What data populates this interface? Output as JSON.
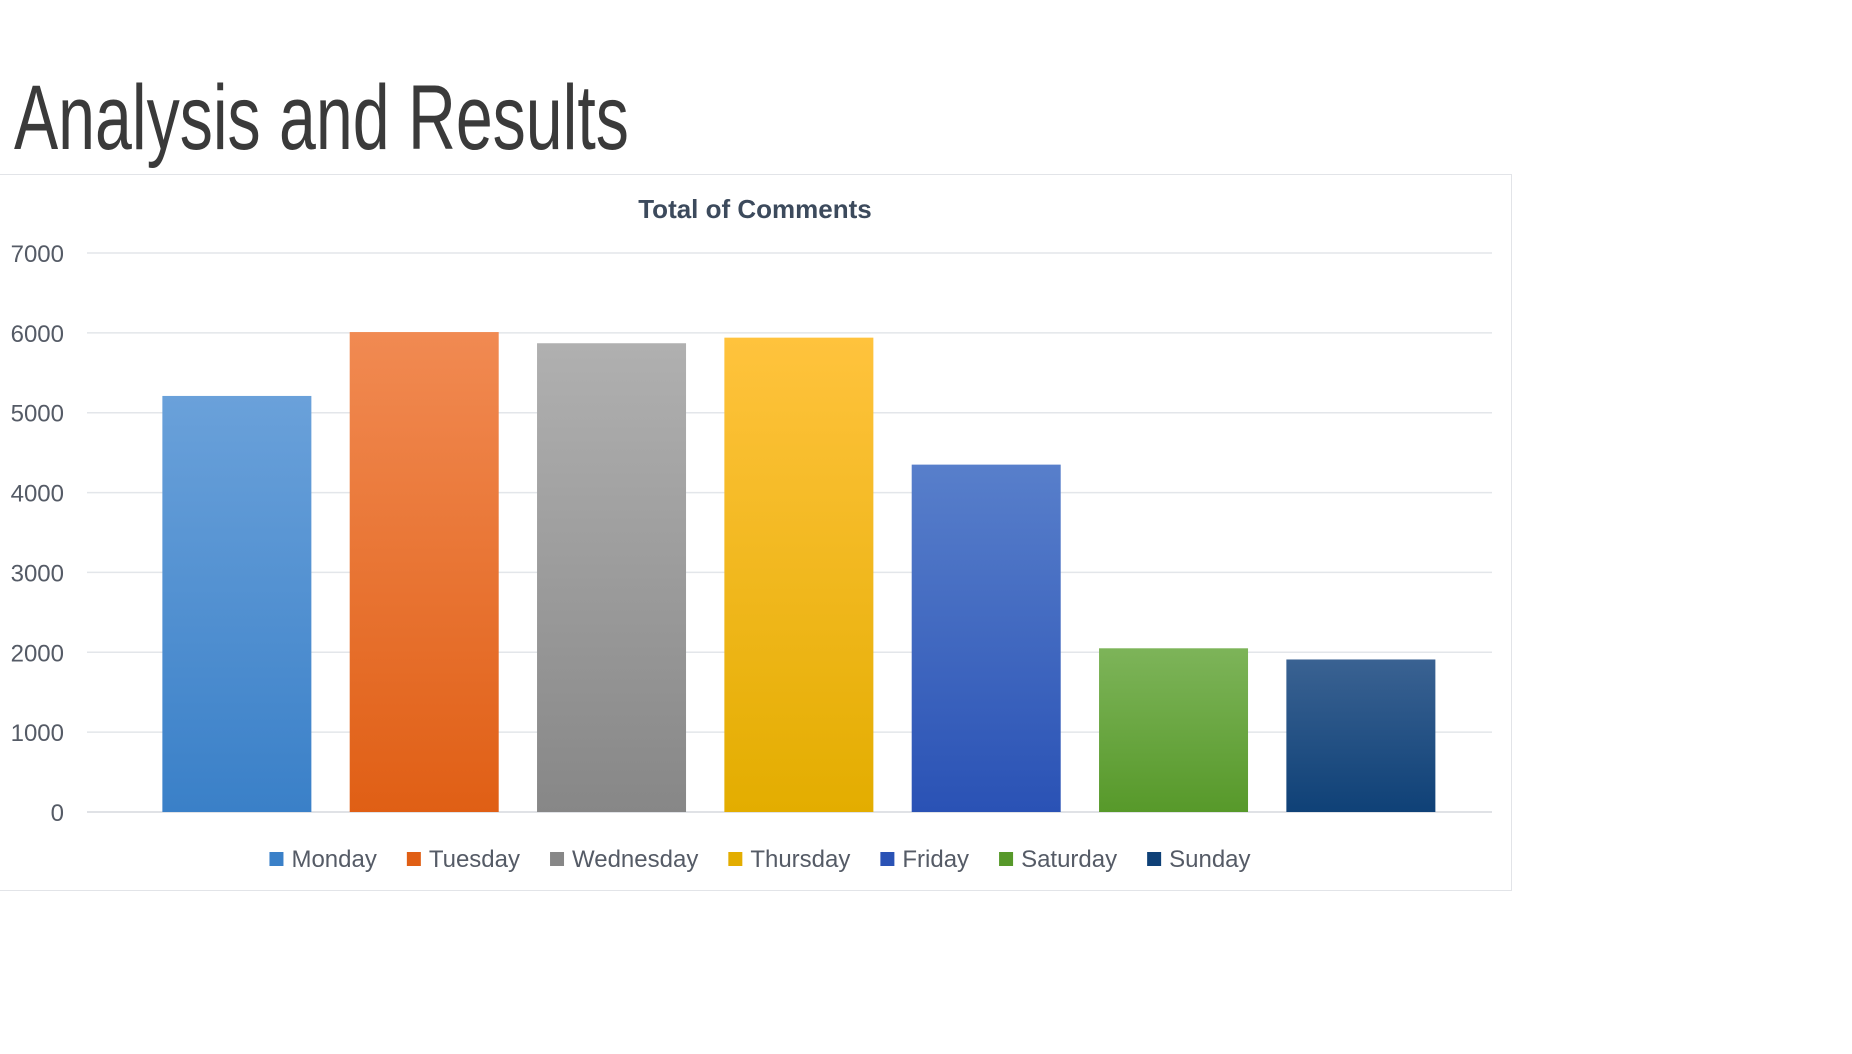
{
  "slide": {
    "title": "Analysis and Results"
  },
  "chart_data": {
    "type": "bar",
    "title": "Total of Comments",
    "xlabel": "",
    "ylabel": "",
    "categories": [
      "Monday",
      "Tuesday",
      "Wednesday",
      "Thursday",
      "Friday",
      "Saturday",
      "Sunday"
    ],
    "values": [
      5210,
      6010,
      5870,
      5940,
      4350,
      2050,
      1910
    ],
    "ylim": [
      0,
      7000
    ],
    "yticks": [
      0,
      1000,
      2000,
      3000,
      4000,
      5000,
      6000,
      7000
    ],
    "grid": true,
    "legend_position": "bottom",
    "colors": [
      {
        "top": "#6aa1da",
        "bottom": "#3a80c8"
      },
      {
        "top": "#f18a52",
        "bottom": "#e05f15"
      },
      {
        "top": "#b0b0b0",
        "bottom": "#878787"
      },
      {
        "top": "#ffc33d",
        "bottom": "#e3ad00"
      },
      {
        "top": "#587fcb",
        "bottom": "#2a52b5"
      },
      {
        "top": "#7db459",
        "bottom": "#57992a"
      },
      {
        "top": "#3a6292",
        "bottom": "#0f4177"
      }
    ]
  }
}
